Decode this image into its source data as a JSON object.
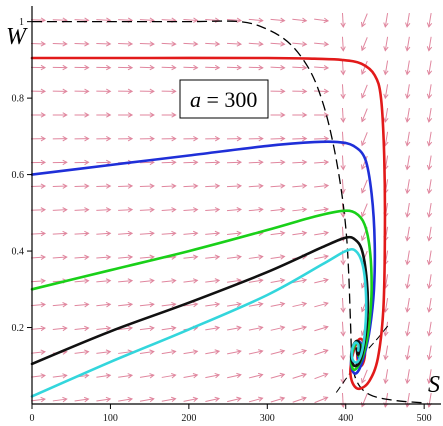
{
  "chart_data": {
    "type": "line",
    "xlabel": "S",
    "ylabel": "W",
    "xlim": [
      0,
      510
    ],
    "ylim": [
      0,
      1.02
    ],
    "x_ticks": [
      "0",
      "100",
      "200",
      "300",
      "400",
      "500"
    ],
    "y_ticks": [
      "0.2",
      "0.4",
      "0.6",
      "0.8",
      "1"
    ],
    "annotation": {
      "var": "a",
      "text": " = 300"
    },
    "vector_field_color": "#e0869e",
    "series": [
      {
        "color": "#e21a1a",
        "points": [
          [
            0,
            0.905
          ],
          [
            150,
            0.905
          ],
          [
            300,
            0.905
          ],
          [
            360,
            0.903
          ],
          [
            395,
            0.9
          ],
          [
            420,
            0.89
          ],
          [
            437,
            0.86
          ],
          [
            445,
            0.8
          ],
          [
            449,
            0.65
          ],
          [
            450,
            0.45
          ],
          [
            448,
            0.25
          ],
          [
            441,
            0.12
          ],
          [
            430,
            0.06
          ],
          [
            418,
            0.04
          ],
          [
            410,
            0.05
          ],
          [
            406,
            0.08
          ],
          [
            408,
            0.12
          ],
          [
            414,
            0.16
          ],
          [
            420,
            0.17
          ],
          [
            424,
            0.15
          ],
          [
            424,
            0.12
          ],
          [
            420,
            0.1
          ],
          [
            416,
            0.11
          ],
          [
            415,
            0.13
          ],
          [
            418,
            0.15
          ]
        ]
      },
      {
        "color": "#1f2fd8",
        "points": [
          [
            0,
            0.6
          ],
          [
            100,
            0.625
          ],
          [
            200,
            0.65
          ],
          [
            300,
            0.675
          ],
          [
            360,
            0.685
          ],
          [
            390,
            0.685
          ],
          [
            410,
            0.675
          ],
          [
            425,
            0.64
          ],
          [
            433,
            0.55
          ],
          [
            437,
            0.42
          ],
          [
            436,
            0.3
          ],
          [
            431,
            0.2
          ],
          [
            424,
            0.13
          ],
          [
            417,
            0.09
          ],
          [
            411,
            0.08
          ],
          [
            407,
            0.1
          ],
          [
            408,
            0.13
          ],
          [
            413,
            0.16
          ],
          [
            419,
            0.16
          ],
          [
            421,
            0.14
          ],
          [
            419,
            0.12
          ],
          [
            416,
            0.12
          ],
          [
            416,
            0.135
          ]
        ]
      },
      {
        "color": "#19d019",
        "points": [
          [
            0,
            0.3
          ],
          [
            100,
            0.35
          ],
          [
            200,
            0.4
          ],
          [
            300,
            0.455
          ],
          [
            360,
            0.49
          ],
          [
            395,
            0.505
          ],
          [
            412,
            0.5
          ],
          [
            424,
            0.47
          ],
          [
            431,
            0.4
          ],
          [
            433,
            0.3
          ],
          [
            430,
            0.21
          ],
          [
            424,
            0.14
          ],
          [
            416,
            0.1
          ],
          [
            410,
            0.09
          ],
          [
            407,
            0.11
          ],
          [
            409,
            0.14
          ],
          [
            414,
            0.16
          ],
          [
            419,
            0.155
          ],
          [
            420,
            0.135
          ],
          [
            417,
            0.125
          ],
          [
            415,
            0.135
          ]
        ]
      },
      {
        "color": "#111111",
        "points": [
          [
            0,
            0.105
          ],
          [
            100,
            0.19
          ],
          [
            200,
            0.265
          ],
          [
            300,
            0.345
          ],
          [
            370,
            0.41
          ],
          [
            400,
            0.435
          ],
          [
            412,
            0.43
          ],
          [
            421,
            0.4
          ],
          [
            427,
            0.32
          ],
          [
            428,
            0.24
          ],
          [
            424,
            0.16
          ],
          [
            418,
            0.11
          ],
          [
            411,
            0.1
          ],
          [
            407,
            0.12
          ],
          [
            409,
            0.15
          ],
          [
            414,
            0.165
          ],
          [
            418,
            0.155
          ],
          [
            418,
            0.135
          ],
          [
            415,
            0.13
          ],
          [
            414,
            0.145
          ]
        ]
      },
      {
        "color": "#33d6dc",
        "points": [
          [
            0,
            0.02
          ],
          [
            100,
            0.11
          ],
          [
            200,
            0.195
          ],
          [
            300,
            0.285
          ],
          [
            370,
            0.365
          ],
          [
            400,
            0.4
          ],
          [
            413,
            0.4
          ],
          [
            422,
            0.36
          ],
          [
            426,
            0.28
          ],
          [
            425,
            0.2
          ],
          [
            421,
            0.14
          ],
          [
            415,
            0.11
          ],
          [
            409,
            0.115
          ],
          [
            408,
            0.14
          ],
          [
            412,
            0.16
          ],
          [
            416,
            0.155
          ],
          [
            416,
            0.14
          ]
        ]
      }
    ],
    "nullcline": {
      "color": "#000000",
      "points": [
        [
          0,
          1.0
        ],
        [
          100,
          1.0
        ],
        [
          200,
          1.0
        ],
        [
          265,
          1.0
        ],
        [
          300,
          0.98
        ],
        [
          330,
          0.94
        ],
        [
          355,
          0.87
        ],
        [
          372,
          0.78
        ],
        [
          385,
          0.67
        ],
        [
          395,
          0.55
        ],
        [
          401,
          0.44
        ],
        [
          404,
          0.33
        ],
        [
          406,
          0.22
        ],
        [
          408,
          0.12
        ],
        [
          414,
          0.06
        ],
        [
          430,
          0.025
        ],
        [
          460,
          0.01
        ],
        [
          500,
          0.003
        ]
      ]
    },
    "separatrix": {
      "color": "#000000",
      "points": [
        [
          388,
          0.03
        ],
        [
          400,
          0.065
        ],
        [
          412,
          0.1
        ],
        [
          425,
          0.135
        ],
        [
          440,
          0.17
        ],
        [
          454,
          0.205
        ]
      ]
    }
  }
}
